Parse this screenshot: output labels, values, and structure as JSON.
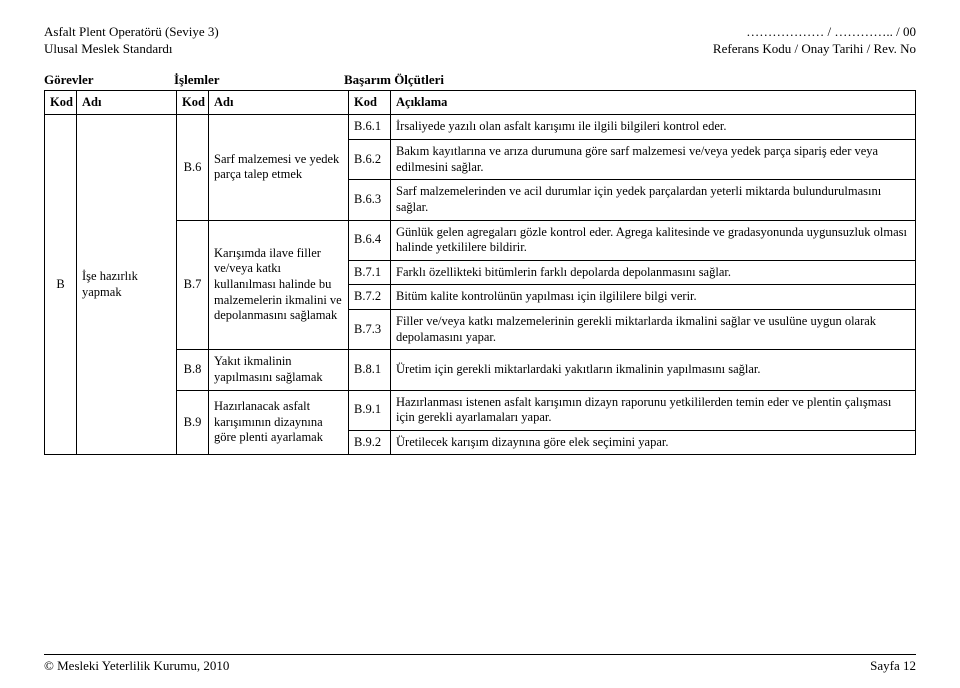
{
  "header": {
    "left_line1": "Asfalt Plent Operatörü (Seviye 3)",
    "left_line2": "Ulusal Meslek Standardı",
    "right_line1": "……………… / ………….. / 00",
    "right_line2": "Referans Kodu / Onay Tarihi / Rev. No"
  },
  "section_labels": {
    "gorevler": "Görevler",
    "islemler": "İşlemler",
    "basarim": "Başarım Ölçütleri"
  },
  "thead": {
    "kod1": "Kod",
    "adi1": "Adı",
    "kod2": "Kod",
    "adi2": "Adı",
    "kod3": "Kod",
    "aciklama": "Açıklama"
  },
  "gorev": {
    "kod": "B",
    "adi": "İşe hazırlık yapmak"
  },
  "islemler": {
    "b6": {
      "kod": "B.6",
      "adi": "Sarf malzemesi ve yedek parça talep etmek"
    },
    "b7": {
      "kod": "B.7",
      "adi": "Karışımda ilave filler ve/veya katkı kullanılması halinde bu malzemelerin ikmalini ve depolanmasını sağlamak"
    },
    "b8": {
      "kod": "B.8",
      "adi": "Yakıt ikmalinin yapılmasını sağlamak"
    },
    "b9": {
      "kod": "B.9",
      "adi": "Hazırlanacak asfalt karışımının dizaynına göre plenti ayarlamak"
    }
  },
  "rows": {
    "r61": {
      "kod": "B.6.1",
      "txt": "İrsaliyede yazılı olan asfalt karışımı ile ilgili bilgileri kontrol eder."
    },
    "r62": {
      "kod": "B.6.2",
      "txt": "Bakım kayıtlarına ve arıza durumuna göre sarf malzemesi ve/veya yedek parça sipariş eder veya edilmesini sağlar."
    },
    "r63": {
      "kod": "B.6.3",
      "txt": "Sarf malzemelerinden ve acil durumlar için yedek parçalardan yeterli miktarda bulundurulmasını sağlar."
    },
    "r64": {
      "kod": "B.6.4",
      "txt": "Günlük gelen agregaları gözle kontrol eder. Agrega kalitesinde ve gradasyonunda uygunsuzluk olması halinde yetkililere bildirir."
    },
    "r71": {
      "kod": "B.7.1",
      "txt": "Farklı özellikteki bitümlerin farklı depolarda depolanmasını sağlar."
    },
    "r72": {
      "kod": "B.7.2",
      "txt": "Bitüm kalite kontrolünün yapılması için ilgililere bilgi verir."
    },
    "r73": {
      "kod": "B.7.3",
      "txt": "Filler ve/veya katkı malzemelerinin gerekli miktarlarda ikmalini sağlar ve usulüne uygun olarak depolamasını yapar."
    },
    "r81": {
      "kod": "B.8.1",
      "txt": "Üretim için gerekli miktarlardaki yakıtların ikmalinin yapılmasını sağlar."
    },
    "r91": {
      "kod": "B.9.1",
      "txt": "Hazırlanması istenen asfalt karışımın dizayn raporunu yetkililerden temin eder ve plentin çalışması için gerekli ayarlamaları yapar."
    },
    "r92": {
      "kod": "B.9.2",
      "txt": "Üretilecek karışım dizaynına göre elek seçimini yapar."
    }
  },
  "footer": {
    "left": "© Mesleki Yeterlilik Kurumu, 2010",
    "right": "Sayfa 12"
  }
}
